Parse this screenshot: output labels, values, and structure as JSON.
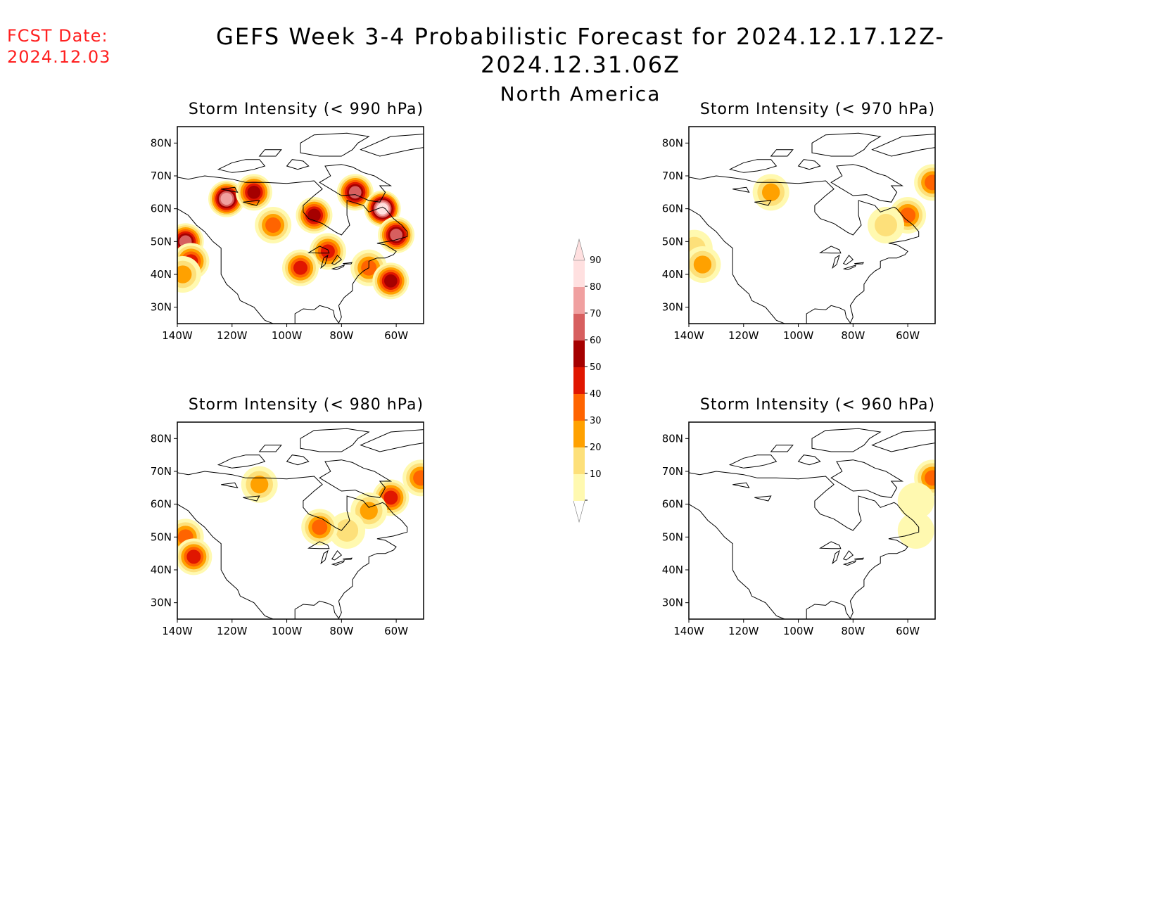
{
  "header": {
    "fcst_date_label": "FCST Date:",
    "fcst_date_value": "2024.12.03",
    "title": "GEFS Week 3-4 Probabilistic Forecast for 2024.12.17.12Z-2024.12.31.06Z",
    "subtitle": "North America"
  },
  "colors": {
    "fcst_text": "#ff2020",
    "levels": [
      "#fff9b0",
      "#fde07a",
      "#ffa100",
      "#ff6400",
      "#e01600",
      "#a50000",
      "#d75f5f",
      "#f0a0a0",
      "#ffe0e0"
    ]
  },
  "colorbar": {
    "ticks": [
      "10",
      "20",
      "30",
      "40",
      "50",
      "60",
      "70",
      "80",
      "90"
    ]
  },
  "chart_data": [
    {
      "type": "heatmap",
      "title": "Storm Intensity (< 990 hPa)",
      "xticks": [
        "140W",
        "120W",
        "100W",
        "80W",
        "60W"
      ],
      "yticks": [
        "30N",
        "40N",
        "50N",
        "60N",
        "70N",
        "80N"
      ],
      "xlim": [
        -140,
        -50
      ],
      "ylim": [
        25,
        85
      ],
      "regions": [
        {
          "lon": -137,
          "lat": 50,
          "prob": 70
        },
        {
          "lon": -135,
          "lat": 44,
          "prob": 50
        },
        {
          "lon": -138,
          "lat": 40,
          "prob": 30
        },
        {
          "lon": -122,
          "lat": 63,
          "prob": 80
        },
        {
          "lon": -112,
          "lat": 65,
          "prob": 60
        },
        {
          "lon": -105,
          "lat": 55,
          "prob": 40
        },
        {
          "lon": -90,
          "lat": 58,
          "prob": 60
        },
        {
          "lon": -85,
          "lat": 47,
          "prob": 50
        },
        {
          "lon": -75,
          "lat": 65,
          "prob": 70
        },
        {
          "lon": -65,
          "lat": 60,
          "prob": 90
        },
        {
          "lon": -60,
          "lat": 52,
          "prob": 70
        },
        {
          "lon": -70,
          "lat": 42,
          "prob": 40
        },
        {
          "lon": -62,
          "lat": 38,
          "prob": 60
        },
        {
          "lon": -95,
          "lat": 42,
          "prob": 50
        }
      ]
    },
    {
      "type": "heatmap",
      "title": "Storm Intensity (< 970 hPa)",
      "xticks": [
        "140W",
        "120W",
        "100W",
        "80W",
        "60W"
      ],
      "yticks": [
        "30N",
        "40N",
        "50N",
        "60N",
        "70N",
        "80N"
      ],
      "xlim": [
        -140,
        -50
      ],
      "ylim": [
        25,
        85
      ],
      "regions": [
        {
          "lon": -138,
          "lat": 48,
          "prob": 20
        },
        {
          "lon": -135,
          "lat": 43,
          "prob": 30
        },
        {
          "lon": -110,
          "lat": 65,
          "prob": 30
        },
        {
          "lon": -60,
          "lat": 58,
          "prob": 40
        },
        {
          "lon": -68,
          "lat": 55,
          "prob": 20
        },
        {
          "lon": -51,
          "lat": 68,
          "prob": 40
        }
      ]
    },
    {
      "type": "heatmap",
      "title": "Storm Intensity (< 980 hPa)",
      "xticks": [
        "140W",
        "120W",
        "100W",
        "80W",
        "60W"
      ],
      "yticks": [
        "30N",
        "40N",
        "50N",
        "60N",
        "70N",
        "80N"
      ],
      "xlim": [
        -140,
        -50
      ],
      "ylim": [
        25,
        85
      ],
      "regions": [
        {
          "lon": -137,
          "lat": 50,
          "prob": 40
        },
        {
          "lon": -134,
          "lat": 44,
          "prob": 50
        },
        {
          "lon": -110,
          "lat": 66,
          "prob": 30
        },
        {
          "lon": -62,
          "lat": 62,
          "prob": 50
        },
        {
          "lon": -70,
          "lat": 58,
          "prob": 30
        },
        {
          "lon": -78,
          "lat": 52,
          "prob": 20
        },
        {
          "lon": -88,
          "lat": 53,
          "prob": 40
        },
        {
          "lon": -51,
          "lat": 68,
          "prob": 40
        }
      ]
    },
    {
      "type": "heatmap",
      "title": "Storm Intensity (< 960 hPa)",
      "xticks": [
        "140W",
        "120W",
        "100W",
        "80W",
        "60W"
      ],
      "yticks": [
        "30N",
        "40N",
        "50N",
        "60N",
        "70N",
        "80N"
      ],
      "xlim": [
        -140,
        -50
      ],
      "ylim": [
        25,
        85
      ],
      "regions": [
        {
          "lon": -51,
          "lat": 68,
          "prob": 40
        },
        {
          "lon": -57,
          "lat": 61,
          "prob": 10
        },
        {
          "lon": -57,
          "lat": 52,
          "prob": 10
        }
      ]
    }
  ]
}
